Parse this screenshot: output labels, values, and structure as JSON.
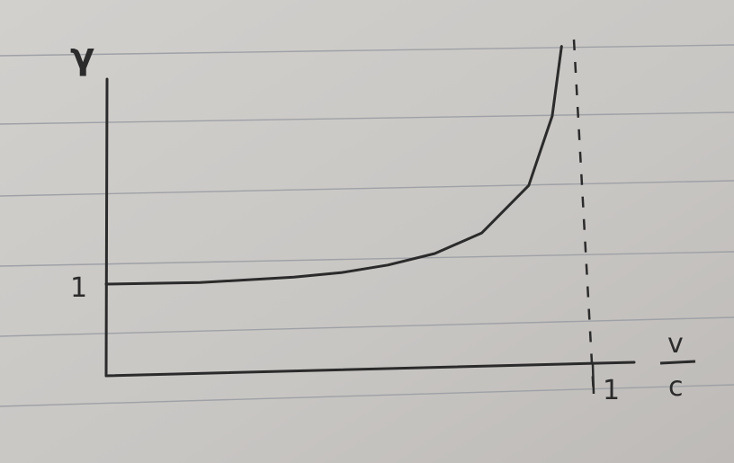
{
  "chart_data": {
    "type": "line",
    "title": "",
    "ylabel": "γ",
    "xlabel_numerator": "v",
    "xlabel_denominator": "c",
    "xlim": [
      0,
      1.03
    ],
    "y_tick_labels": [
      "1"
    ],
    "x_tick_labels": [
      "1"
    ],
    "asymptote_x": 1,
    "grid": false,
    "series": [
      {
        "x": [
          0,
          0.2,
          0.4,
          0.5,
          0.6,
          0.7,
          0.8,
          0.9,
          0.95,
          0.97
        ],
        "y": [
          1.0,
          1.02,
          1.09,
          1.15,
          1.25,
          1.4,
          1.67,
          2.29,
          3.2,
          4.11
        ]
      }
    ]
  },
  "colors": {
    "paper": "#c9c7c4",
    "ruled_line": "#9ea1a6",
    "ink": "#2b2b2b"
  }
}
